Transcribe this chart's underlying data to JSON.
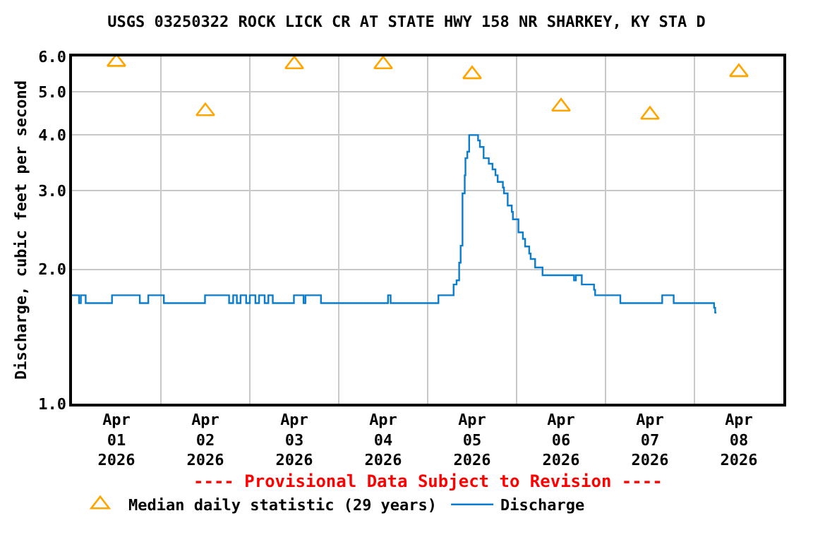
{
  "chart_data": {
    "type": "step",
    "title": "USGS 03250322 ROCK LICK CR AT STATE HWY 158 NR SHARKEY, KY STA D",
    "ylabel": "Discharge, cubic feet per second",
    "annotations": [
      "---- Provisional Data Subject to Revision ----"
    ],
    "log": true,
    "grid": true,
    "legend": "bottom",
    "xlim": [
      "2026-04-01T00:00",
      "2026-04-09T00:00"
    ],
    "xticks": [
      {
        "value": "2026-04-01T12:00",
        "label": "Apr\n01\n2026"
      },
      {
        "value": "2026-04-02T12:00",
        "label": "Apr\n02\n2026"
      },
      {
        "value": "2026-04-03T12:00",
        "label": "Apr\n03\n2026"
      },
      {
        "value": "2026-04-04T12:00",
        "label": "Apr\n04\n2026"
      },
      {
        "value": "2026-04-05T12:00",
        "label": "Apr\n05\n2026"
      },
      {
        "value": "2026-04-06T12:00",
        "label": "Apr\n06\n2026"
      },
      {
        "value": "2026-04-07T12:00",
        "label": "Apr\n07\n2026"
      },
      {
        "value": "2026-04-08T12:00",
        "label": "Apr\n08\n2026"
      },
      {
        "value": "2026-04-02T00:00",
        "label": null
      },
      {
        "value": "2026-04-03T00:00",
        "label": null
      },
      {
        "value": "2026-04-04T00:00",
        "label": null
      },
      {
        "value": "2026-04-05T00:00",
        "label": null
      },
      {
        "value": "2026-04-06T00:00",
        "label": null
      },
      {
        "value": "2026-04-07T00:00",
        "label": null
      },
      {
        "value": "2026-04-08T00:00",
        "label": null
      }
    ],
    "ylim": [
      1,
      6
    ],
    "yticks": [
      {
        "value": 1,
        "label": "1.0"
      },
      {
        "value": 2,
        "label": "2.0"
      },
      {
        "value": 3,
        "label": "3.0"
      },
      {
        "value": 4,
        "label": "4.0"
      },
      {
        "value": 5,
        "label": "5.0"
      },
      {
        "value": 6,
        "label": "6.0"
      }
    ],
    "series": [
      {
        "name": "Median daily statistic (29 years)",
        "type": "scatter",
        "marker": "triangle",
        "color": "#ffa500",
        "x": [
          "2026-04-01T12:00",
          "2026-04-02T12:00",
          "2026-04-03T12:00",
          "2026-04-04T12:00",
          "2026-04-05T12:00",
          "2026-04-06T12:00",
          "2026-04-07T12:00",
          "2026-04-08T12:00"
        ],
        "values": [
          5.83,
          4.52,
          5.76,
          5.76,
          5.47,
          4.63,
          4.44,
          5.53
        ]
      },
      {
        "name": "Discharge",
        "color": "#0a7dcf",
        "x": [
          "2026-04-01T00:00",
          "2026-04-01T01:54",
          "2026-04-01T02:24",
          "2026-04-01T03:42",
          "2026-04-01T10:48",
          "2026-04-01T18:18",
          "2026-04-01T20:36",
          "2026-04-02T00:48",
          "2026-04-02T11:54",
          "2026-04-02T18:24",
          "2026-04-02T19:30",
          "2026-04-02T20:30",
          "2026-04-02T21:30",
          "2026-04-02T23:00",
          "2026-04-03T00:00",
          "2026-04-03T01:30",
          "2026-04-03T02:30",
          "2026-04-03T04:00",
          "2026-04-03T05:00",
          "2026-04-03T06:12",
          "2026-04-03T11:54",
          "2026-04-03T14:30",
          "2026-04-03T15:00",
          "2026-04-03T19:12",
          "2026-04-04T13:18",
          "2026-04-04T14:00",
          "2026-04-05T02:54",
          "2026-04-05T07:00",
          "2026-04-05T07:48",
          "2026-04-05T08:30",
          "2026-04-05T08:54",
          "2026-04-05T09:24",
          "2026-04-05T10:00",
          "2026-04-05T10:12",
          "2026-04-05T10:42",
          "2026-04-05T11:12",
          "2026-04-05T13:36",
          "2026-04-05T14:06",
          "2026-04-05T15:06",
          "2026-04-05T16:30",
          "2026-04-05T17:30",
          "2026-04-05T18:18",
          "2026-04-05T18:54",
          "2026-04-05T20:18",
          "2026-04-05T20:36",
          "2026-04-05T21:36",
          "2026-04-05T22:42",
          "2026-04-05T23:00",
          "2026-04-06T00:30",
          "2026-04-06T01:42",
          "2026-04-06T02:18",
          "2026-04-06T03:24",
          "2026-04-06T03:48",
          "2026-04-06T05:00",
          "2026-04-06T07:00",
          "2026-04-06T15:30",
          "2026-04-06T16:00",
          "2026-04-06T17:36",
          "2026-04-06T20:54",
          "2026-04-06T21:12",
          "2026-04-07T04:00",
          "2026-04-07T15:18",
          "2026-04-07T18:24",
          "2026-04-08T05:18",
          "2026-04-08T05:36",
          "2026-04-08T05:54"
        ],
        "values": [
          1.75,
          1.68,
          1.75,
          1.68,
          1.75,
          1.68,
          1.75,
          1.68,
          1.75,
          1.68,
          1.75,
          1.68,
          1.75,
          1.68,
          1.75,
          1.68,
          1.75,
          1.68,
          1.75,
          1.68,
          1.75,
          1.68,
          1.75,
          1.68,
          1.75,
          1.68,
          1.75,
          1.85,
          1.89,
          2.07,
          2.26,
          2.96,
          3.25,
          3.55,
          3.67,
          4.0,
          3.89,
          3.76,
          3.55,
          3.45,
          3.35,
          3.25,
          3.14,
          3.05,
          2.96,
          2.78,
          2.69,
          2.59,
          2.42,
          2.34,
          2.25,
          2.17,
          2.11,
          2.02,
          1.94,
          1.89,
          1.94,
          1.85,
          1.8,
          1.75,
          1.68,
          1.75,
          1.68,
          1.64,
          1.6,
          1.6
        ]
      }
    ]
  }
}
